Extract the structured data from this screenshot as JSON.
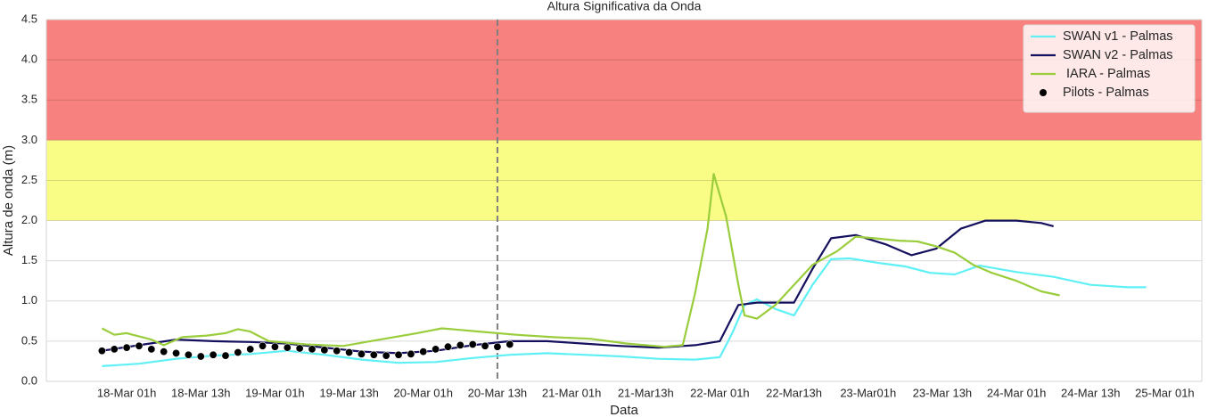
{
  "chart_data": {
    "type": "line",
    "title": "Altura Significativa da Onda",
    "xlabel": "Data",
    "ylabel": "Altura de onda (m)",
    "xlim": [
      "17-Mar 12h",
      "25-Mar 07h"
    ],
    "ylim": [
      0,
      4.5
    ],
    "xticks": [
      {
        "value": "18-Mar 01h",
        "label": "18-Mar 01h"
      },
      {
        "value": "18-Mar 13h",
        "label": "18-Mar 13h"
      },
      {
        "value": "19-Mar 01h",
        "label": "19-Mar 01h"
      },
      {
        "value": "19-Mar 13h",
        "label": "19-Mar 13h"
      },
      {
        "value": "20-Mar 01h",
        "label": "20-Mar 01h"
      },
      {
        "value": "20-Mar 13h",
        "label": "20-Mar 13h"
      },
      {
        "value": "21-Mar 01h",
        "label": "21-Mar 01h"
      },
      {
        "value": "21-Mar 13h",
        "label": "21-Mar13h"
      },
      {
        "value": "22-Mar 01h",
        "label": "22-Mar 01h"
      },
      {
        "value": "22-Mar 13h",
        "label": "22-Mar13h"
      },
      {
        "value": "23-Mar 01h",
        "label": "23-Mar01h"
      },
      {
        "value": "23-Mar 13h",
        "label": "23-Mar 13h"
      },
      {
        "value": "24-Mar 01h",
        "label": "24-Mar 01h"
      },
      {
        "value": "24-Mar 13h",
        "label": "24-Mar 13h"
      },
      {
        "value": "25-Mar 01h",
        "label": "25-Mar 01h"
      }
    ],
    "yticks": [
      {
        "value": 0,
        "label": "0.0"
      },
      {
        "value": 0.5,
        "label": "0.5"
      },
      {
        "value": 1,
        "label": "1.0"
      },
      {
        "value": 1.5,
        "label": "1.5"
      },
      {
        "value": 2,
        "label": "2.0"
      },
      {
        "value": 2.5,
        "label": "2.5"
      },
      {
        "value": 3,
        "label": "3.0"
      },
      {
        "value": 3.5,
        "label": "3.5"
      },
      {
        "value": 4,
        "label": "4.0"
      },
      {
        "value": 4.5,
        "label": "4.5"
      }
    ],
    "grid": true,
    "legend": "upper right",
    "bands": [
      {
        "from": 3,
        "to": 4.5,
        "color": "#f7817e"
      },
      {
        "from": 2,
        "to": 3,
        "color": "#f9fc85"
      }
    ],
    "vline": "20-Mar 13h",
    "series": [
      {
        "name": "SWAN v1 - Palmas",
        "color": "#5ff0f5",
        "kind": "line",
        "x": [
          "17-Mar 21h",
          "18-Mar 03h",
          "18-Mar 09h",
          "18-Mar 15h",
          "18-Mar 21h",
          "19-Mar 03h",
          "19-Mar 09h",
          "19-Mar 15h",
          "19-Mar 21h",
          "20-Mar 03h",
          "20-Mar 09h",
          "20-Mar 15h",
          "20-Mar 21h",
          "21-Mar 03h",
          "21-Mar 09h",
          "21-Mar 15h",
          "21-Mar 21h",
          "22-Mar 01h",
          "22-Mar 03h",
          "22-Mar 05h",
          "22-Mar 07h",
          "22-Mar 10h",
          "22-Mar 13h",
          "22-Mar 16h",
          "22-Mar 19h",
          "22-Mar 22h",
          "23-Mar 03h",
          "23-Mar 07h",
          "23-Mar 11h",
          "23-Mar 15h",
          "23-Mar 19h",
          "24-Mar 01h",
          "24-Mar 07h",
          "24-Mar 13h",
          "24-Mar 19h",
          "24-Mar 22h"
        ],
        "values": [
          0.19,
          0.22,
          0.28,
          0.32,
          0.34,
          0.38,
          0.33,
          0.27,
          0.23,
          0.24,
          0.29,
          0.33,
          0.35,
          0.33,
          0.31,
          0.28,
          0.27,
          0.3,
          0.6,
          0.95,
          1.02,
          0.9,
          0.82,
          1.2,
          1.52,
          1.53,
          1.47,
          1.43,
          1.35,
          1.33,
          1.44,
          1.36,
          1.3,
          1.2,
          1.17,
          1.17
        ]
      },
      {
        "name": "SWAN v2 - Palmas",
        "color": "#14105e",
        "kind": "line",
        "x": [
          "17-Mar 21h",
          "18-Mar 03h",
          "18-Mar 09h",
          "18-Mar 15h",
          "18-Mar 21h",
          "19-Mar 03h",
          "19-Mar 09h",
          "19-Mar 15h",
          "19-Mar 21h",
          "20-Mar 03h",
          "20-Mar 09h",
          "20-Mar 15h",
          "20-Mar 21h",
          "21-Mar 03h",
          "21-Mar 09h",
          "21-Mar 15h",
          "21-Mar 21h",
          "22-Mar 01h",
          "22-Mar 04h",
          "22-Mar 07h",
          "22-Mar 13h",
          "22-Mar 16h",
          "22-Mar 19h",
          "22-Mar 23h",
          "23-Mar 04h",
          "23-Mar 08h",
          "23-Mar 12h",
          "23-Mar 16h",
          "23-Mar 20h",
          "24-Mar 01h",
          "24-Mar 05h",
          "24-Mar 07h"
        ],
        "values": [
          0.38,
          0.45,
          0.52,
          0.5,
          0.49,
          0.47,
          0.42,
          0.37,
          0.35,
          0.38,
          0.45,
          0.5,
          0.5,
          0.47,
          0.44,
          0.42,
          0.45,
          0.5,
          0.95,
          0.98,
          0.98,
          1.4,
          1.78,
          1.82,
          1.7,
          1.57,
          1.65,
          1.9,
          2.0,
          2.0,
          1.97,
          1.93
        ]
      },
      {
        "name": " IARA - Palmas",
        "color": "#9acd3c",
        "kind": "line",
        "x": [
          "17-Mar 21h",
          "17-Mar 23h",
          "18-Mar 01h",
          "18-Mar 05h",
          "18-Mar 07h",
          "18-Mar 10h",
          "18-Mar 14h",
          "18-Mar 17h",
          "18-Mar 19h",
          "18-Mar 21h",
          "19-Mar 00h",
          "19-Mar 06h",
          "19-Mar 12h",
          "19-Mar 18h",
          "20-Mar 00h",
          "20-Mar 04h",
          "20-Mar 10h",
          "20-Mar 16h",
          "20-Mar 22h",
          "21-Mar 04h",
          "21-Mar 10h",
          "21-Mar 16h",
          "21-Mar 19h",
          "21-Mar 21h",
          "21-Mar 23h",
          "22-Mar 00h",
          "22-Mar 02h",
          "22-Mar 04h",
          "22-Mar 05h",
          "22-Mar 07h",
          "22-Mar 10h",
          "22-Mar 13h",
          "22-Mar 16h",
          "22-Mar 20h",
          "22-Mar 23h",
          "23-Mar 02h",
          "23-Mar 06h",
          "23-Mar 09h",
          "23-Mar 12h",
          "23-Mar 15h",
          "23-Mar 18h",
          "23-Mar 21h",
          "24-Mar 01h",
          "24-Mar 05h",
          "24-Mar 08h"
        ],
        "values": [
          0.66,
          0.58,
          0.6,
          0.52,
          0.45,
          0.55,
          0.57,
          0.6,
          0.65,
          0.62,
          0.5,
          0.46,
          0.44,
          0.52,
          0.6,
          0.66,
          0.62,
          0.58,
          0.55,
          0.53,
          0.47,
          0.43,
          0.45,
          1.1,
          1.9,
          2.58,
          2.05,
          1.2,
          0.82,
          0.78,
          0.95,
          1.2,
          1.45,
          1.62,
          1.8,
          1.78,
          1.75,
          1.74,
          1.68,
          1.6,
          1.45,
          1.35,
          1.25,
          1.12,
          1.07
        ]
      },
      {
        "name": "Pilots - Palmas",
        "color": "#000000",
        "kind": "scatter",
        "x": [
          "17-Mar 21h",
          "17-Mar 23h",
          "18-Mar 01h",
          "18-Mar 03h",
          "18-Mar 05h",
          "18-Mar 07h",
          "18-Mar 09h",
          "18-Mar 11h",
          "18-Mar 13h",
          "18-Mar 15h",
          "18-Mar 17h",
          "18-Mar 19h",
          "18-Mar 21h",
          "18-Mar 23h",
          "19-Mar 01h",
          "19-Mar 03h",
          "19-Mar 05h",
          "19-Mar 07h",
          "19-Mar 09h",
          "19-Mar 11h",
          "19-Mar 13h",
          "19-Mar 15h",
          "19-Mar 17h",
          "19-Mar 19h",
          "19-Mar 21h",
          "19-Mar 23h",
          "20-Mar 01h",
          "20-Mar 03h",
          "20-Mar 05h",
          "20-Mar 07h",
          "20-Mar 09h",
          "20-Mar 11h",
          "20-Mar 13h",
          "20-Mar 15h"
        ],
        "values": [
          0.38,
          0.4,
          0.42,
          0.44,
          0.4,
          0.37,
          0.35,
          0.33,
          0.31,
          0.33,
          0.32,
          0.36,
          0.4,
          0.44,
          0.43,
          0.42,
          0.41,
          0.4,
          0.39,
          0.38,
          0.36,
          0.34,
          0.33,
          0.32,
          0.33,
          0.34,
          0.37,
          0.4,
          0.43,
          0.45,
          0.46,
          0.44,
          0.43,
          0.46
        ]
      }
    ]
  }
}
